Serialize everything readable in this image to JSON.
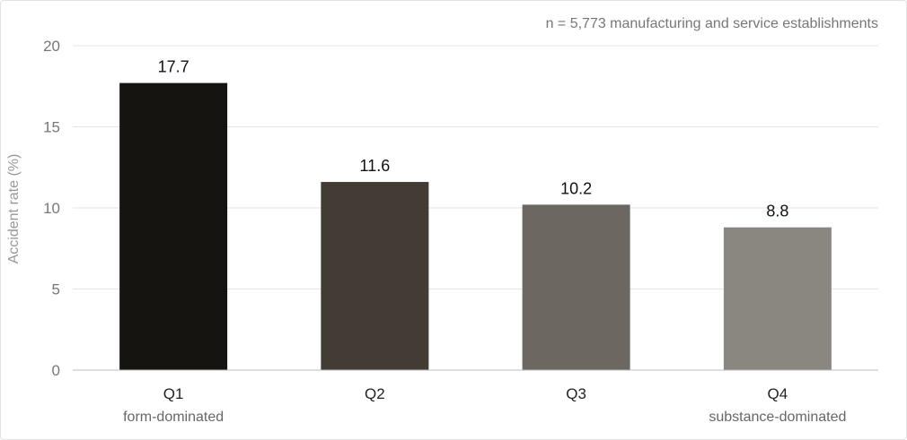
{
  "chart_data": {
    "type": "bar",
    "categories": [
      "Q1",
      "Q2",
      "Q3",
      "Q4"
    ],
    "category_sublabels": [
      "form-dominated",
      "",
      "",
      "substance-dominated"
    ],
    "values": [
      17.7,
      11.6,
      10.2,
      8.8
    ],
    "data_labels": [
      "17.7",
      "11.6",
      "10.2",
      "8.8"
    ],
    "colors": [
      "#161410",
      "#423c35",
      "#6c6760",
      "#8a8680"
    ],
    "title": "",
    "xlabel": "",
    "ylabel": "Accident rate (%)",
    "ylim": [
      0,
      20
    ],
    "yticks": [
      0,
      5,
      10,
      15,
      20
    ],
    "ytick_labels": [
      "0",
      "5",
      "10",
      "15",
      "20"
    ],
    "grid": true,
    "legend": "none",
    "annotation": "n = 5,773 manufacturing and service establishments"
  }
}
